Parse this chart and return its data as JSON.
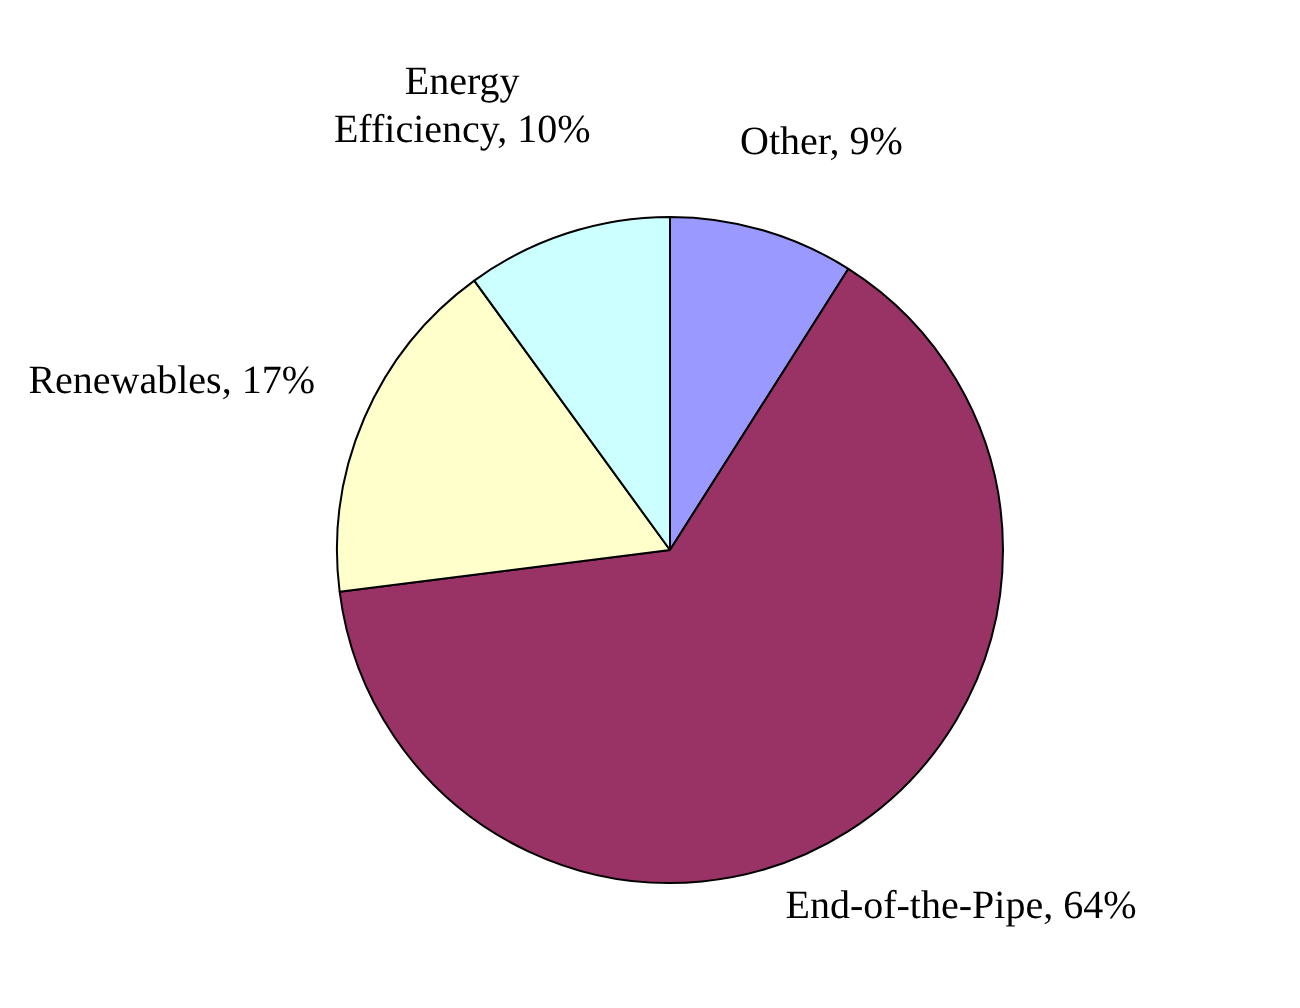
{
  "chart_data": {
    "type": "pie",
    "categories": [
      "Other",
      "End-of-the-Pipe",
      "Renewables",
      "Energy Efficiency"
    ],
    "values": [
      9,
      64,
      17,
      10
    ],
    "value_labels": [
      "9%",
      "64%",
      "17%",
      "10%"
    ],
    "colors": [
      "#9999ff",
      "#993366",
      "#ffffcc",
      "#ccffff"
    ],
    "legend": false
  }
}
